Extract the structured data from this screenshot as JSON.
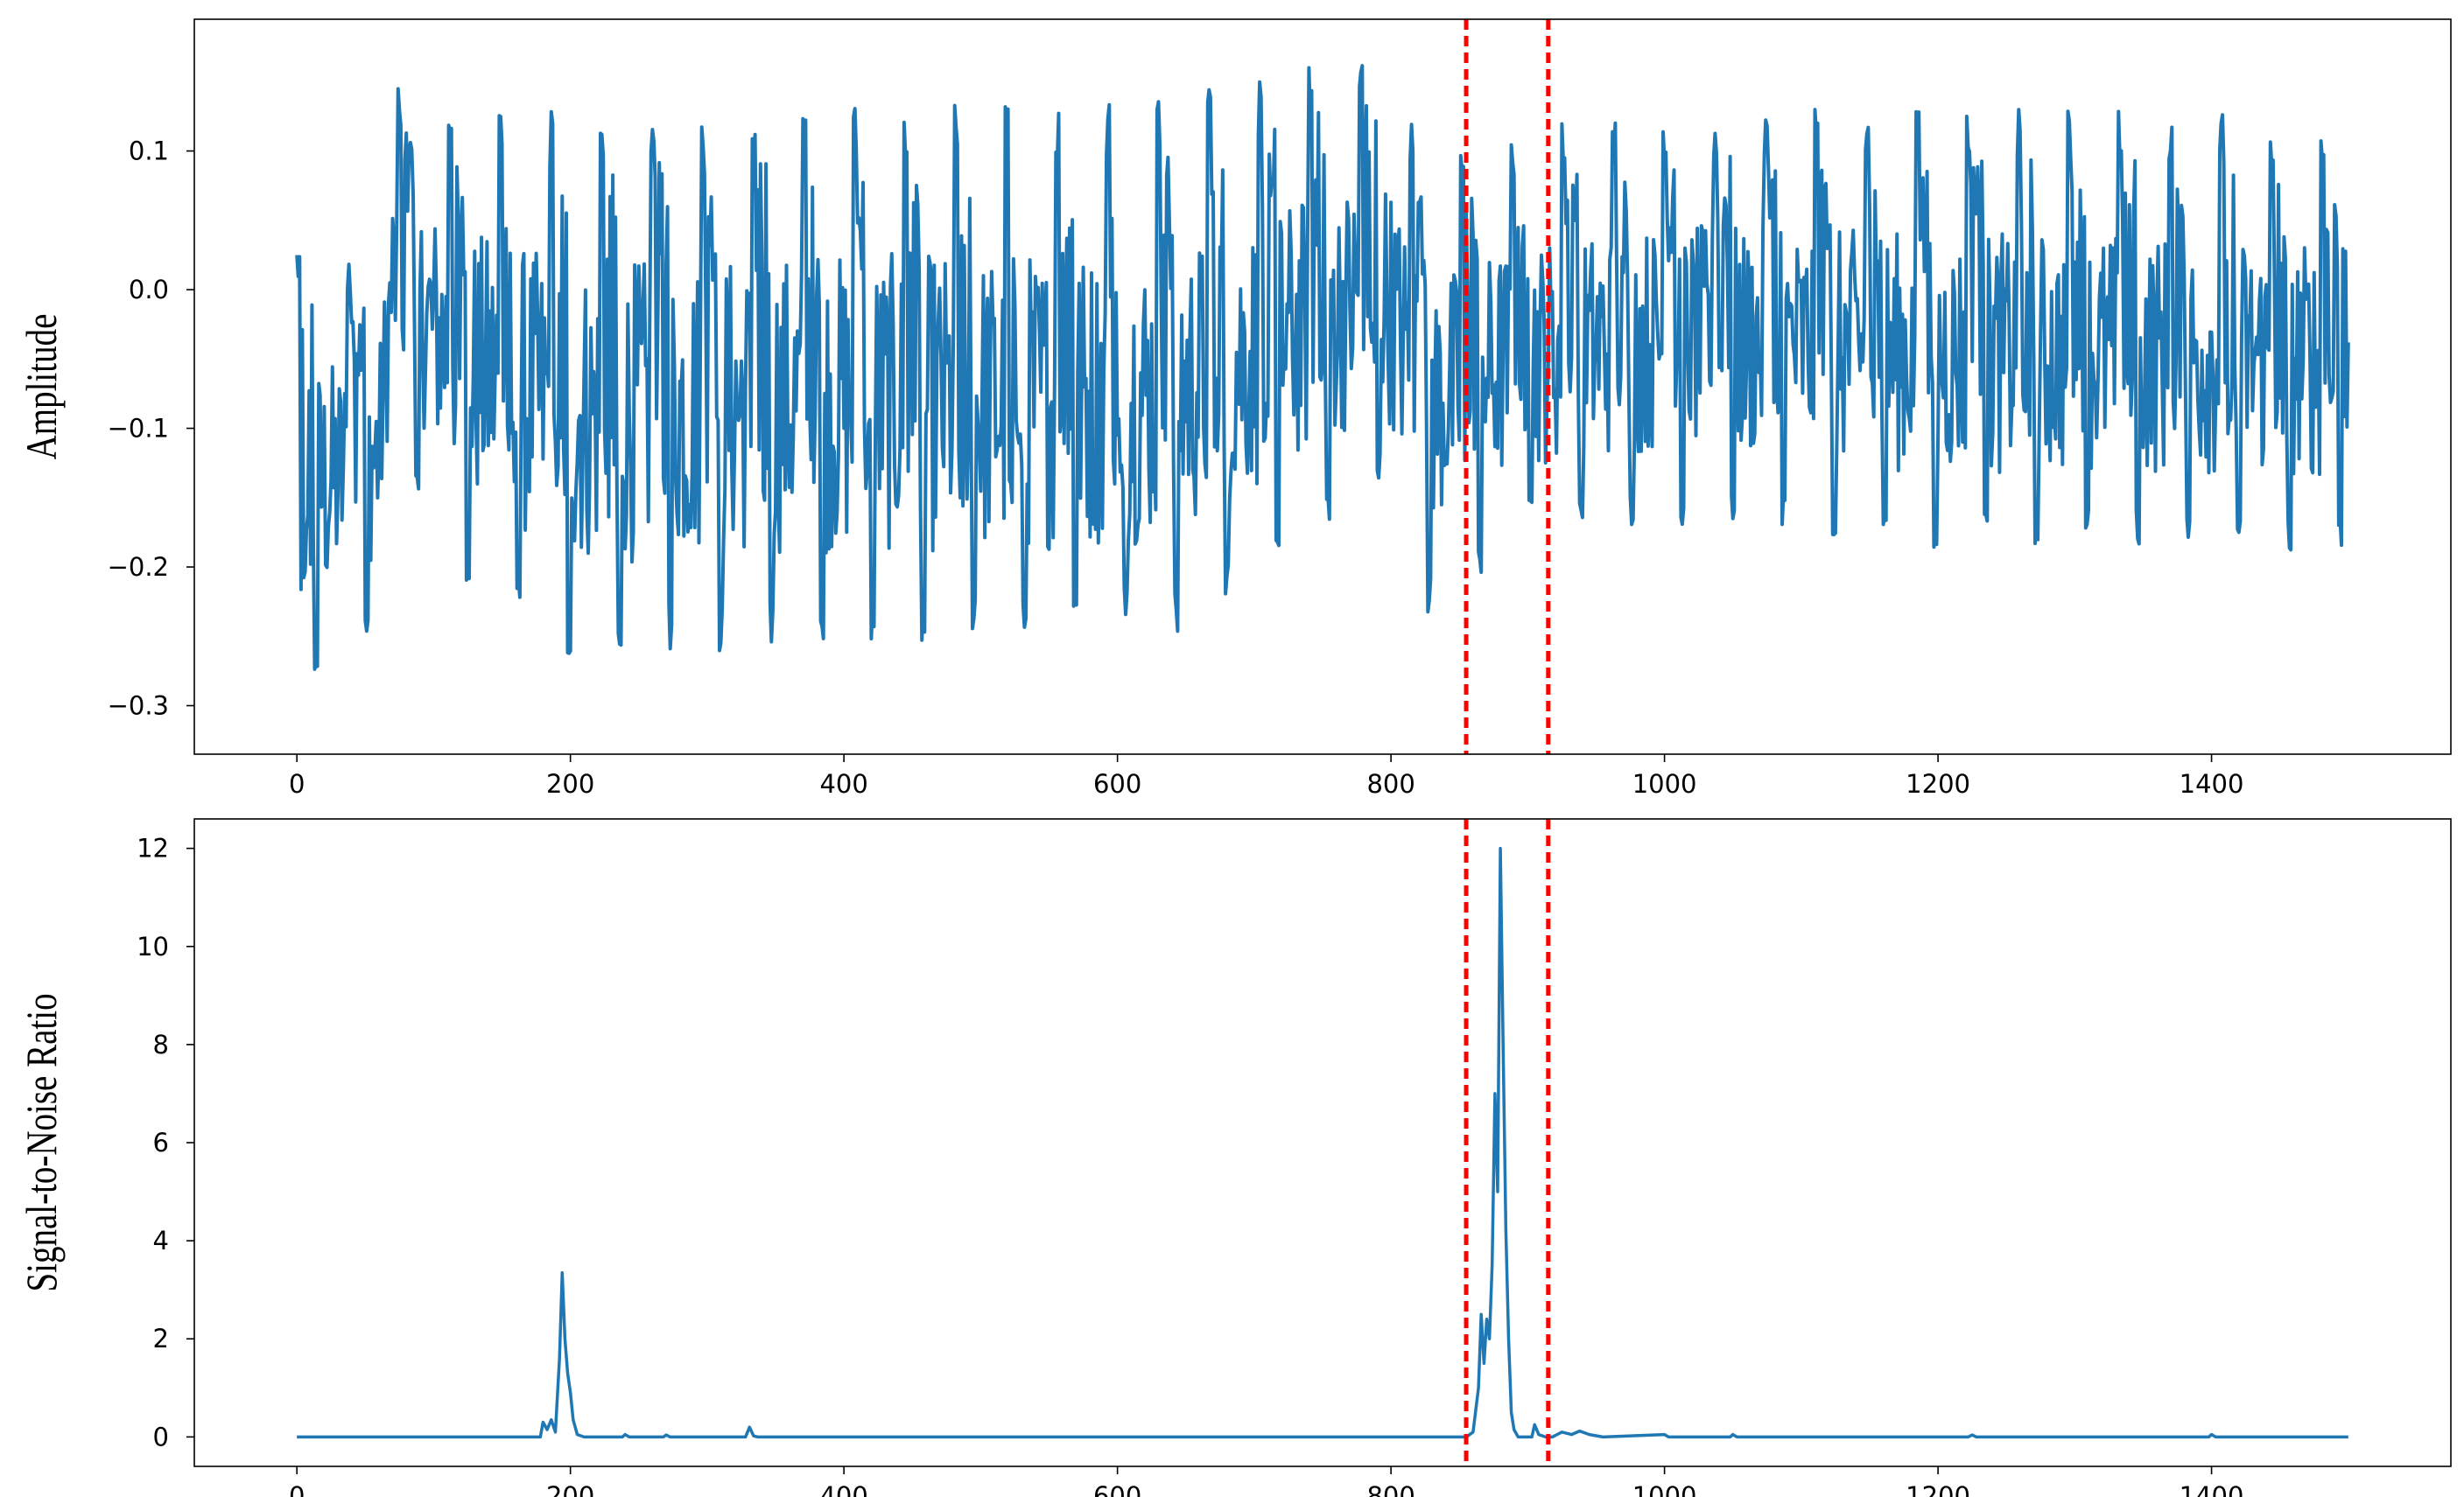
{
  "chart_data": [
    {
      "type": "line",
      "title": "",
      "xlabel": "",
      "ylabel": "Amplitude",
      "xlim": [
        -75,
        1575
      ],
      "ylim": [
        -0.335,
        0.195
      ],
      "xticks": [
        0,
        200,
        400,
        600,
        800,
        1000,
        1200,
        1400
      ],
      "xtick_labels": [
        "0",
        "200",
        "400",
        "600",
        "800",
        "1000",
        "1200",
        "1400"
      ],
      "yticks": [
        0.1,
        0.0,
        -0.1,
        -0.2,
        -0.3
      ],
      "ytick_labels": [
        "0.1",
        "0.0",
        "−0.1",
        "−0.2",
        "−0.3"
      ],
      "grid": false,
      "legend": "none",
      "series": [
        {
          "color": "#1f77b4",
          "x_range": [
            0,
            1500
          ],
          "approx_period": 37,
          "envelope": [
            {
              "x": 0,
              "min": -0.31,
              "max": 0.04
            },
            {
              "x": 60,
              "min": -0.24,
              "max": 0.03
            },
            {
              "x": 70,
              "min": -0.1,
              "max": 0.145
            },
            {
              "x": 120,
              "min": -0.215,
              "max": 0.145
            },
            {
              "x": 200,
              "min": -0.27,
              "max": 0.13
            },
            {
              "x": 350,
              "min": -0.26,
              "max": 0.135
            },
            {
              "x": 500,
              "min": -0.26,
              "max": 0.135
            },
            {
              "x": 640,
              "min": -0.25,
              "max": 0.14
            },
            {
              "x": 795,
              "min": -0.14,
              "max": 0.175
            },
            {
              "x": 825,
              "min": -0.235,
              "max": 0.1
            },
            {
              "x": 900,
              "min": -0.18,
              "max": 0.12
            },
            {
              "x": 1000,
              "min": -0.17,
              "max": 0.13
            },
            {
              "x": 1200,
              "min": -0.19,
              "max": 0.13
            },
            {
              "x": 1400,
              "min": -0.19,
              "max": 0.13
            },
            {
              "x": 1500,
              "min": -0.19,
              "max": 0.115
            }
          ]
        }
      ],
      "vlines": [
        {
          "x": 855,
          "color": "#ff0000",
          "style": "dashed"
        },
        {
          "x": 915,
          "color": "#ff0000",
          "style": "dashed"
        }
      ]
    },
    {
      "type": "line",
      "title": "",
      "xlabel": "",
      "ylabel": "Signal-to-Noise Ratio",
      "xlim": [
        -75,
        1575
      ],
      "ylim": [
        -0.6,
        12.6
      ],
      "xticks": [
        0,
        200,
        400,
        600,
        800,
        1000,
        1200,
        1400
      ],
      "xtick_labels": [
        "0",
        "200",
        "400",
        "600",
        "800",
        "1000",
        "1200",
        "1400"
      ],
      "yticks": [
        0,
        2,
        4,
        6,
        8,
        10,
        12
      ],
      "ytick_labels": [
        "0",
        "2",
        "4",
        "6",
        "8",
        "10",
        "12"
      ],
      "grid": false,
      "legend": "none",
      "series": [
        {
          "color": "#1f77b4",
          "points": [
            [
              0,
              0
            ],
            [
              178,
              0
            ],
            [
              180,
              0.3
            ],
            [
              183,
              0.15
            ],
            [
              186,
              0.35
            ],
            [
              189,
              0.1
            ],
            [
              192,
              1.6
            ],
            [
              194,
              3.35
            ],
            [
              196,
              2.0
            ],
            [
              198,
              1.3
            ],
            [
              200,
              0.9
            ],
            [
              202,
              0.35
            ],
            [
              205,
              0.05
            ],
            [
              210,
              0
            ],
            [
              238,
              0
            ],
            [
              240,
              0.05
            ],
            [
              243,
              0
            ],
            [
              268,
              0
            ],
            [
              270,
              0.04
            ],
            [
              273,
              0
            ],
            [
              328,
              0
            ],
            [
              331,
              0.2
            ],
            [
              334,
              0.02
            ],
            [
              337,
              0
            ],
            [
              855,
              0
            ],
            [
              860,
              0.1
            ],
            [
              864,
              1.0
            ],
            [
              866,
              2.5
            ],
            [
              868,
              1.5
            ],
            [
              870,
              2.4
            ],
            [
              872,
              2.0
            ],
            [
              874,
              3.5
            ],
            [
              876,
              7.0
            ],
            [
              878,
              5.0
            ],
            [
              880,
              12.0
            ],
            [
              882,
              8.0
            ],
            [
              884,
              4.2
            ],
            [
              886,
              2.0
            ],
            [
              888,
              0.5
            ],
            [
              890,
              0.15
            ],
            [
              893,
              0
            ],
            [
              903,
              0
            ],
            [
              905,
              0.25
            ],
            [
              908,
              0.05
            ],
            [
              913,
              0
            ],
            [
              918,
              0
            ],
            [
              925,
              0.1
            ],
            [
              932,
              0.05
            ],
            [
              938,
              0.12
            ],
            [
              945,
              0.05
            ],
            [
              955,
              0
            ],
            [
              1000,
              0.05
            ],
            [
              1003,
              0
            ],
            [
              1048,
              0
            ],
            [
              1050,
              0.05
            ],
            [
              1053,
              0
            ],
            [
              1222,
              0
            ],
            [
              1225,
              0.04
            ],
            [
              1228,
              0
            ],
            [
              1398,
              0
            ],
            [
              1400,
              0.05
            ],
            [
              1403,
              0
            ],
            [
              1500,
              0
            ]
          ]
        }
      ],
      "vlines": [
        {
          "x": 855,
          "color": "#ff0000",
          "style": "dashed"
        },
        {
          "x": 915,
          "color": "#ff0000",
          "style": "dashed"
        }
      ]
    }
  ]
}
